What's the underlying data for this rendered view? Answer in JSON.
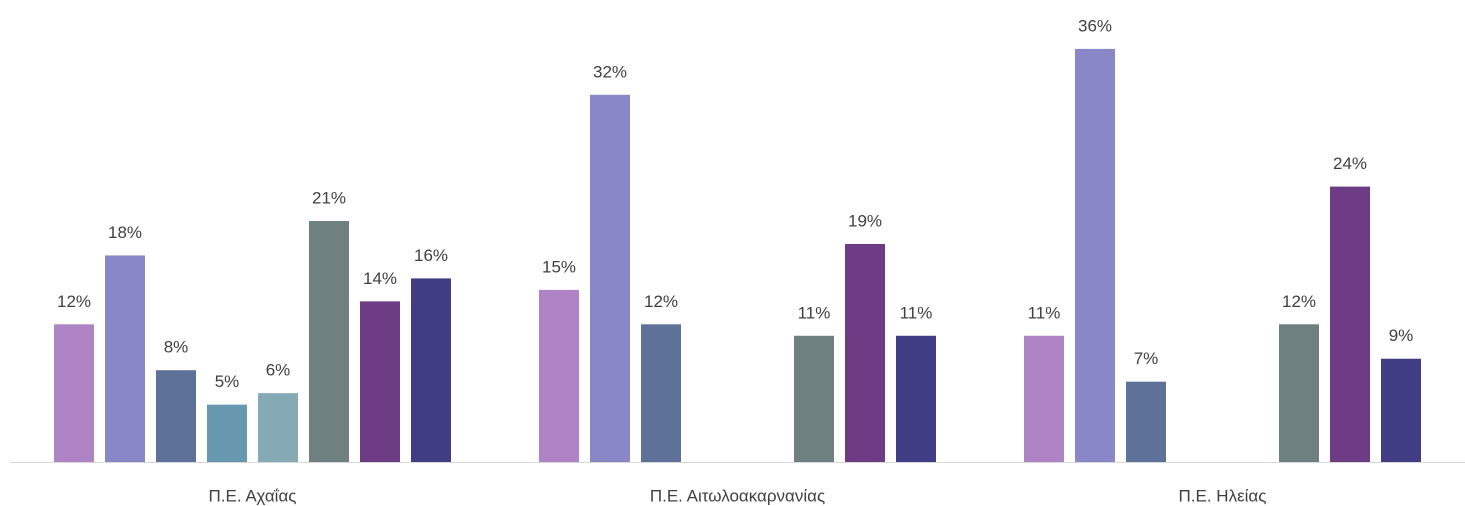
{
  "chart_data": {
    "type": "bar",
    "categories": [
      "Π.Ε. Αχαΐας",
      "Π.Ε. Αιτωλοακαρνανίας",
      "Π.Ε. Ηλείας"
    ],
    "series": [
      {
        "color": "#ae84c4",
        "values": [
          12,
          15,
          11
        ],
        "value_labels": [
          "12%",
          "15%",
          "11%"
        ]
      },
      {
        "color": "#8a87c8",
        "values": [
          18,
          32,
          36
        ],
        "value_labels": [
          "18%",
          "32%",
          "36%"
        ]
      },
      {
        "color": "#5e7299",
        "values": [
          8,
          12,
          7
        ],
        "value_labels": [
          "8%",
          "12%",
          "7%"
        ]
      },
      {
        "color": "#6798b0",
        "values": [
          5,
          null,
          null
        ],
        "value_labels": [
          "5%",
          null,
          null
        ]
      },
      {
        "color": "#86aab5",
        "values": [
          6,
          null,
          null
        ],
        "value_labels": [
          "6%",
          null,
          null
        ]
      },
      {
        "color": "#6f8080",
        "values": [
          21,
          11,
          12
        ],
        "value_labels": [
          "21%",
          "11%",
          "12%"
        ]
      },
      {
        "color": "#6e3c85",
        "values": [
          14,
          19,
          24
        ],
        "value_labels": [
          "14%",
          "19%",
          "24%"
        ]
      },
      {
        "color": "#413d85",
        "values": [
          16,
          11,
          9
        ],
        "value_labels": [
          "16%",
          "11%",
          "9%"
        ]
      }
    ],
    "ylim": [
      0,
      40
    ]
  }
}
